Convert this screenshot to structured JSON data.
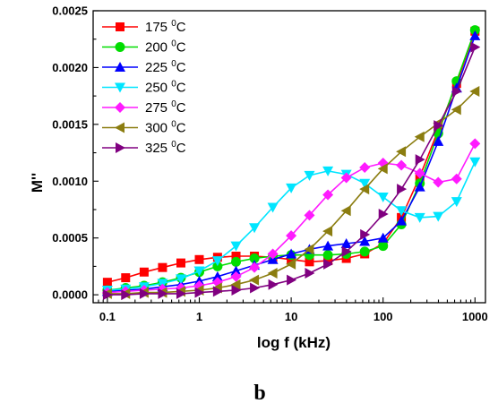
{
  "chart_data": {
    "type": "line",
    "xlabel": "log f (kHz)",
    "ylabel": "M''",
    "x_scale": "log",
    "xlim": [
      0.07,
      1300
    ],
    "ylim": [
      -7e-05,
      0.0025
    ],
    "x_ticks": [
      0.1,
      1,
      10,
      100,
      1000
    ],
    "x_tick_labels": [
      "0.1",
      "1",
      "10",
      "100",
      "1000"
    ],
    "y_ticks": [
      0,
      0.0005,
      0.001,
      0.0015,
      0.002,
      0.0025
    ],
    "y_tick_labels": [
      "0.0000",
      "0.0005",
      "0.0010",
      "0.0015",
      "0.0020",
      "0.0025"
    ],
    "grid": false,
    "legend_position": "top-left",
    "panel_label": "b",
    "series": [
      {
        "name": "175",
        "unit": "0C",
        "color": "#ff0000",
        "marker": "square",
        "x": [
          0.1,
          0.158,
          0.251,
          0.398,
          0.631,
          1.0,
          1.58,
          2.51,
          3.98,
          6.31,
          10,
          15.8,
          25.1,
          39.8,
          63.1,
          100,
          158,
          251,
          398,
          631,
          1000
        ],
        "y": [
          0.00011,
          0.00015,
          0.0002,
          0.00024,
          0.00028,
          0.00031,
          0.00033,
          0.00034,
          0.00034,
          0.00033,
          0.00031,
          0.00029,
          0.0003,
          0.00032,
          0.00036,
          0.00045,
          0.00068,
          0.00104,
          0.00145,
          0.00186,
          0.00232
        ]
      },
      {
        "name": "200",
        "unit": "0C",
        "color": "#00dd00",
        "marker": "circle",
        "x": [
          0.1,
          0.158,
          0.251,
          0.398,
          0.631,
          1.0,
          1.58,
          2.51,
          3.98,
          6.31,
          10,
          15.8,
          25.1,
          39.8,
          63.1,
          100,
          158,
          251,
          398,
          631,
          1000
        ],
        "y": [
          4e-05,
          6e-05,
          8e-05,
          0.00011,
          0.00015,
          0.0002,
          0.00025,
          0.00029,
          0.00032,
          0.00034,
          0.00035,
          0.00035,
          0.00035,
          0.00036,
          0.00038,
          0.00043,
          0.00062,
          0.00098,
          0.00142,
          0.00188,
          0.00233
        ]
      },
      {
        "name": "225",
        "unit": "0C",
        "color": "#0000ff",
        "marker": "triangle-up",
        "x": [
          0.1,
          0.158,
          0.251,
          0.398,
          0.631,
          1.0,
          1.58,
          2.51,
          3.98,
          6.31,
          10,
          15.8,
          25.1,
          39.8,
          63.1,
          100,
          158,
          251,
          398,
          631,
          1000
        ],
        "y": [
          3e-05,
          4e-05,
          5e-05,
          7e-05,
          9e-05,
          0.00012,
          0.00016,
          0.00021,
          0.00026,
          0.00031,
          0.00036,
          0.0004,
          0.00043,
          0.00045,
          0.00047,
          0.0005,
          0.00065,
          0.00095,
          0.00135,
          0.00182,
          0.00228
        ]
      },
      {
        "name": "250",
        "unit": "0C",
        "color": "#00e5ff",
        "marker": "triangle-down",
        "x": [
          0.1,
          0.158,
          0.251,
          0.398,
          0.631,
          1.0,
          1.58,
          2.51,
          3.98,
          6.31,
          10,
          15.8,
          25.1,
          39.8,
          63.1,
          100,
          158,
          251,
          398,
          631,
          1000
        ],
        "y": [
          4e-05,
          5e-05,
          7e-05,
          0.0001,
          0.00014,
          0.00021,
          0.0003,
          0.00043,
          0.00059,
          0.00077,
          0.00094,
          0.00105,
          0.00109,
          0.00106,
          0.00098,
          0.00086,
          0.00074,
          0.00068,
          0.00069,
          0.00082,
          0.00117
        ]
      },
      {
        "name": "275",
        "unit": "0C",
        "color": "#ff1aff",
        "marker": "diamond",
        "x": [
          0.1,
          0.158,
          0.251,
          0.398,
          0.631,
          1.0,
          1.58,
          2.51,
          3.98,
          6.31,
          10,
          15.8,
          25.1,
          39.8,
          63.1,
          100,
          158,
          251,
          398,
          631,
          1000
        ],
        "y": [
          2e-05,
          3e-05,
          4e-05,
          5e-05,
          6e-05,
          8e-05,
          0.00011,
          0.00016,
          0.00024,
          0.00036,
          0.00052,
          0.0007,
          0.00088,
          0.00103,
          0.00112,
          0.00116,
          0.00114,
          0.00107,
          0.00099,
          0.00102,
          0.00133
        ]
      },
      {
        "name": "300",
        "unit": "0C",
        "color": "#8b7d10",
        "marker": "triangle-left",
        "x": [
          0.1,
          0.158,
          0.251,
          0.398,
          0.631,
          1.0,
          1.58,
          2.51,
          3.98,
          6.31,
          10,
          15.8,
          25.1,
          39.8,
          63.1,
          100,
          158,
          251,
          398,
          631,
          1000
        ],
        "y": [
          1e-05,
          1e-05,
          2e-05,
          2e-05,
          3e-05,
          4e-05,
          6e-05,
          9e-05,
          0.00013,
          0.00019,
          0.00027,
          0.0004,
          0.00056,
          0.00074,
          0.00093,
          0.00111,
          0.00126,
          0.00139,
          0.00151,
          0.00163,
          0.00179
        ]
      },
      {
        "name": "325",
        "unit": "0C",
        "color": "#800080",
        "marker": "triangle-right",
        "x": [
          0.1,
          0.158,
          0.251,
          0.398,
          0.631,
          1.0,
          1.58,
          2.51,
          3.98,
          6.31,
          10,
          15.8,
          25.1,
          39.8,
          63.1,
          100,
          158,
          251,
          398,
          631,
          1000
        ],
        "y": [
          0.0,
          0.0,
          1e-05,
          1e-05,
          1e-05,
          2e-05,
          3e-05,
          4e-05,
          6e-05,
          9e-05,
          0.00013,
          0.00019,
          0.00027,
          0.00038,
          0.00053,
          0.00071,
          0.00093,
          0.00119,
          0.00149,
          0.00179,
          0.00218
        ]
      }
    ]
  }
}
